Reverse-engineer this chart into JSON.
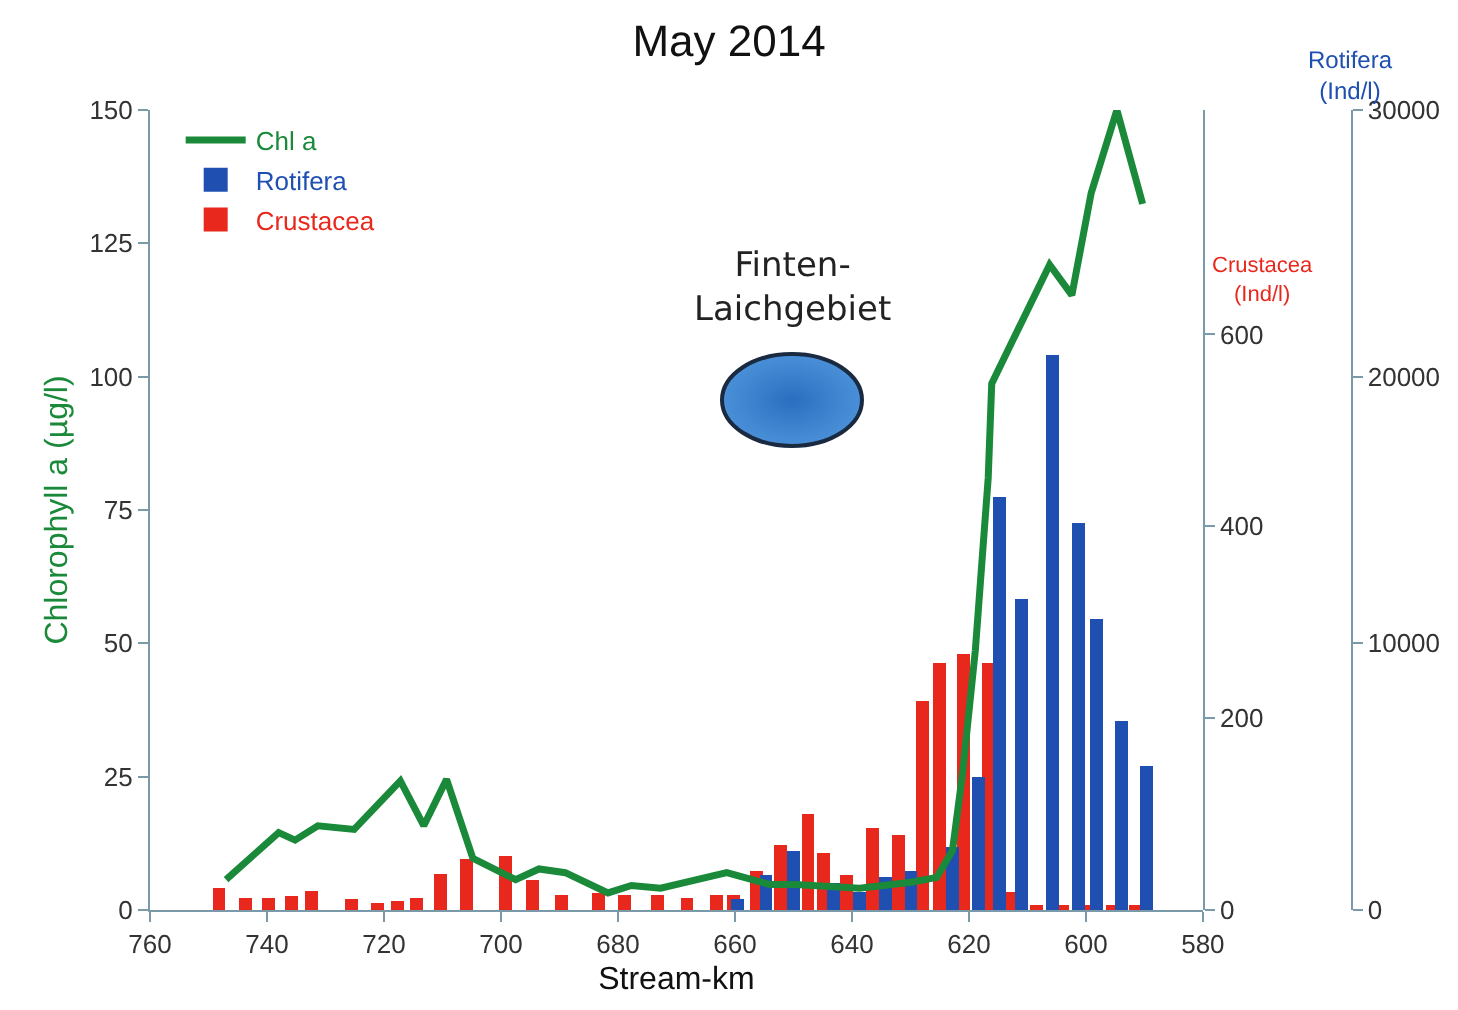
{
  "chart_data": {
    "type": "bar",
    "title": "May 2014",
    "xlabel": "Stream-km",
    "ylabel": "Chlorophyll a (µg/l)",
    "y2label": "Rotifera\n(Ind/l)",
    "y3label": "Crustacea\n(Ind/l)",
    "xlim": [
      760,
      580
    ],
    "xticks": [
      760,
      740,
      720,
      700,
      680,
      660,
      640,
      620,
      600,
      580
    ],
    "ylim": [
      0,
      150
    ],
    "yticks": [
      0,
      25,
      50,
      75,
      100,
      125,
      150
    ],
    "y2lim": [
      0,
      30000
    ],
    "y2ticks": [
      0,
      10000,
      20000,
      30000
    ],
    "y3lim": [
      0,
      834
    ],
    "y3ticks": [
      0,
      200,
      400,
      600
    ],
    "grid": false,
    "legend": "top left",
    "marker": "none",
    "line_style": "solid",
    "annotations": [
      "Finten-\nLaichgebiet"
    ],
    "series": [
      {
        "name": "Chl a",
        "type": "line",
        "color": "#1a8a3a",
        "x": [
          747.0,
          738.0,
          735.2,
          731.3,
          725.1,
          717.2,
          713.2,
          709.3,
          704.8,
          697.5,
          693.5,
          689.0,
          681.7,
          677.7,
          672.7,
          661.4,
          654.1,
          649.7,
          638.7,
          629.9,
          625.5,
          622.8,
          621.1,
          618.9,
          616.7,
          616.1,
          606.2,
          602.4,
          599.1,
          594.7,
          590.3
        ],
        "values": [
          5.7,
          14.5,
          13.1,
          15.8,
          15.1,
          24.2,
          15.8,
          24.5,
          9.7,
          5.7,
          7.7,
          7.0,
          3.2,
          4.6,
          4.1,
          7.0,
          4.8,
          4.8,
          4.1,
          5.2,
          6.1,
          11.2,
          25.5,
          48.7,
          81,
          98.7,
          121,
          115.3,
          134.4,
          150,
          132.4
        ]
      },
      {
        "name": "Rotifera",
        "axis": "y2",
        "color": "#1f4fb0",
        "x": [
          659.6,
          654.7,
          650.0,
          643.1,
          638.7,
          634.3,
          629.9,
          622.8,
          618.3,
          614.7,
          611.0,
          605.7,
          601.3,
          598.2,
          593.9,
          589.7
        ],
        "values": [
          430,
          1330,
          2220,
          1000,
          690,
          1250,
          1450,
          2350,
          5000,
          15480,
          11660,
          20800,
          14500,
          10900,
          7070,
          5410
        ]
      },
      {
        "name": "Crustacea",
        "axis": "y3",
        "color": "#e8281c",
        "x": [
          748.2,
          743.7,
          739.7,
          735.8,
          732.4,
          725.6,
          721.1,
          717.7,
          714.4,
          710.4,
          705.9,
          699.2,
          694.6,
          689.6,
          683.4,
          678.9,
          673.2,
          668.2,
          663.1,
          660.2,
          656.3,
          652.2,
          647.5,
          644.8,
          640.9,
          636.5,
          632.1,
          627.9,
          625.0,
          620.9,
          616.7,
          612.6,
          608.5,
          604.0,
          600.0,
          595.5,
          591.5
        ],
        "values": [
          23,
          12,
          12,
          15,
          20,
          11,
          7,
          9,
          12,
          38,
          53,
          56,
          31,
          16,
          18,
          16,
          16,
          12,
          16,
          16,
          41,
          68,
          100,
          59,
          37,
          85,
          78,
          218,
          258,
          267,
          258,
          19,
          5,
          5,
          5,
          5,
          5
        ]
      }
    ]
  }
}
